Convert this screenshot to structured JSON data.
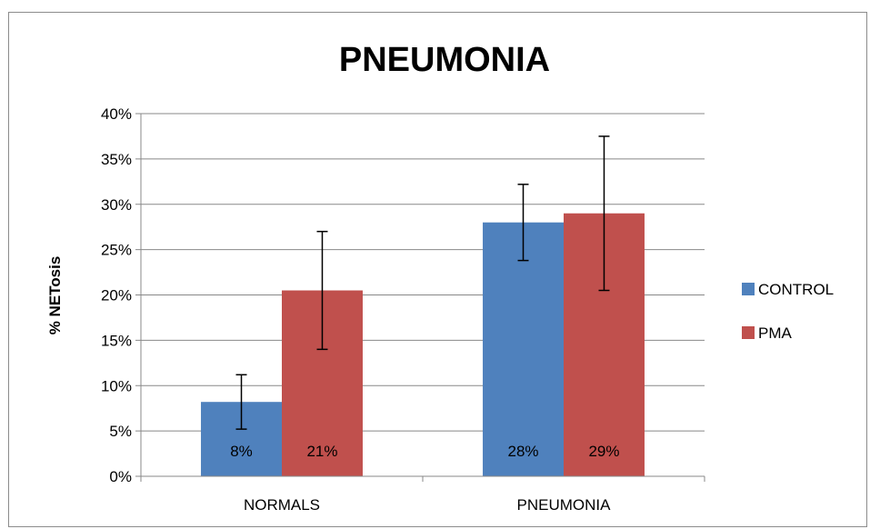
{
  "chart_data": {
    "type": "bar",
    "title": "PNEUMONIA",
    "xlabel": "",
    "ylabel": "% NETosis",
    "categories": [
      "NORMALS",
      "PNEUMONIA"
    ],
    "ylim": [
      0,
      0.4
    ],
    "yticks": [
      0,
      0.05,
      0.1,
      0.15,
      0.2,
      0.25,
      0.3,
      0.35,
      0.4
    ],
    "ytick_labels": [
      "0%",
      "5%",
      "10%",
      "15%",
      "20%",
      "25%",
      "30%",
      "35%",
      "40%"
    ],
    "grid": "horizontal",
    "legend_position": "right",
    "series": [
      {
        "name": "CONTROL",
        "color": "#4F81BD",
        "values": [
          0.082,
          0.28
        ],
        "errors": [
          0.03,
          0.042
        ],
        "data_labels": [
          "8%",
          "28%"
        ]
      },
      {
        "name": "PMA",
        "color": "#C0504D",
        "values": [
          0.205,
          0.29
        ],
        "errors": [
          0.065,
          0.085
        ],
        "data_labels": [
          "21%",
          "29%"
        ]
      }
    ]
  }
}
